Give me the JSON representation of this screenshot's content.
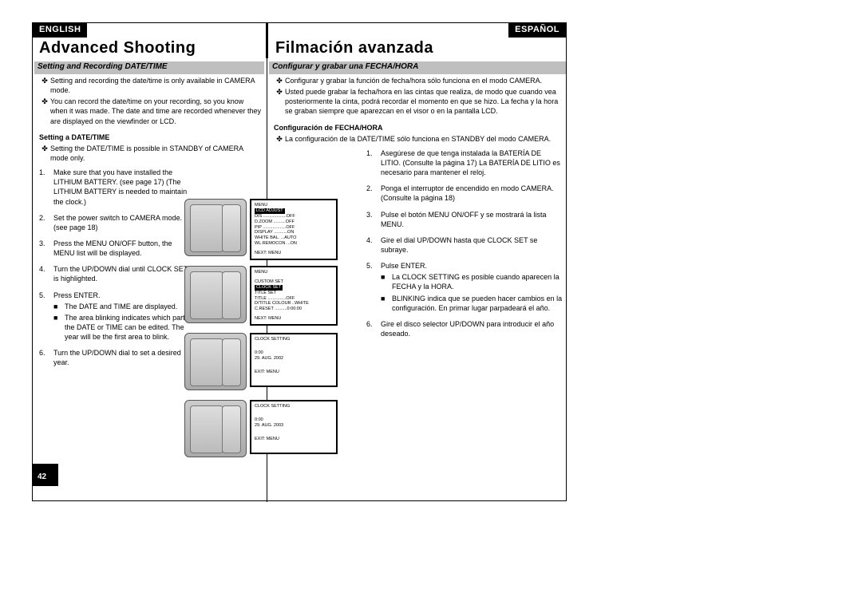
{
  "lang": {
    "en": "ENGLISH",
    "es": "ESPAÑOL"
  },
  "heading": {
    "en": "Advanced Shooting",
    "es": "Filmación avanzada"
  },
  "subbar": {
    "en": "Setting and Recording DATE/TIME",
    "es": "Configurar y grabar una FECHA/HORA"
  },
  "intro_en": [
    "Setting and recording the date/time is only available in CAMERA mode.",
    "You can record the date/time on your recording, so you know when it was made. The date and time are recorded whenever they are displayed on the viewfinder or LCD."
  ],
  "intro_es": [
    "Configurar y grabar la función de fecha/hora sólo funciona en el modo CAMERA.",
    "Usted puede grabar la fecha/hora en las cintas que realiza, de modo que cuando vea posteriormente la cinta, podrá recordar el momento en que se hizo. La fecha y la hora se graban siempre que aparezcan en el visor o en la pantalla LCD."
  ],
  "subhead": {
    "en": "Setting a DATE/TIME",
    "es": "Configuración de FECHA/HORA"
  },
  "subnote": {
    "en": "Setting the DATE/TIME is possible in STANDBY of CAMERA mode only.",
    "es": "La configuración de la DATE/TIME sólo funciona en STANDBY del modo CAMERA."
  },
  "steps_en": [
    {
      "n": "1.",
      "t": "Make sure that you have installed the LITHIUM BATTERY. (see page 17) (The LITHIUM BATTERY is needed to maintain the clock.)"
    },
    {
      "n": "2.",
      "t": "Set the power switch to CAMERA mode. (see page 18)"
    },
    {
      "n": "3.",
      "t": "Press the MENU ON/OFF button, the MENU list will be displayed."
    },
    {
      "n": "4.",
      "t": "Turn the UP/DOWN dial until CLOCK SET is highlighted."
    },
    {
      "n": "5.",
      "t": "Press ENTER.",
      "subs": [
        "The DATE and TIME are displayed.",
        "The area blinking indicates which part of the DATE or TIME can be edited. The year will be the first area to blink."
      ]
    },
    {
      "n": "6.",
      "t": "Turn the UP/DOWN dial to set a desired year."
    }
  ],
  "steps_es": [
    {
      "n": "1.",
      "t": "Asegúrese de que tenga instalada la BATERÍA DE LITIO. (Consulte la página 17) La BATERÍA DE LITIO es necesario para mantener el reloj."
    },
    {
      "n": "2.",
      "t": "Ponga el interruptor de encendido en modo CAMERA. (Consulte la página 18)"
    },
    {
      "n": "3.",
      "t": "Pulse el botón MENU ON/OFF y se mostrará la lista MENU."
    },
    {
      "n": "4.",
      "t": "Gire el dial UP/DOWN hasta que CLOCK SET se subraye."
    },
    {
      "n": "5.",
      "t": "Pulse ENTER.",
      "subs": [
        "La CLOCK SETTING es posible cuando aparecen la  FECHA y la HORA.",
        "BLINKING indica que se pueden hacer cambios en la configuración. En primar lugar parpadeará el año."
      ]
    },
    {
      "n": "6.",
      "t": "Gire el disco selector UP/DOWN para introducir el año deseado."
    }
  ],
  "pagenum": "42",
  "screens": [
    {
      "lines": [
        {
          "t": "MENU"
        },
        {
          "t": "LCD ADJUST",
          "hl": true
        },
        {
          "t": "DIS ...................OFF"
        },
        {
          "t": "D.ZOOM ..........OFF"
        },
        {
          "t": "PIP ...................OFF"
        },
        {
          "t": "DISPLAY ...........ON"
        },
        {
          "t": "WHITE BAL. ...AUTO"
        },
        {
          "t": "WL.REMOCON ...ON"
        },
        {
          "sp": true
        },
        {
          "t": "NEXT: MENU"
        }
      ]
    },
    {
      "lines": [
        {
          "t": "MENU"
        },
        {
          "sp": true
        },
        {
          "t": "CUSTOM SET"
        },
        {
          "t": "CLOCK SET",
          "hl": true
        },
        {
          "t": "TITLE SET"
        },
        {
          "t": "TITLE ...............OFF"
        },
        {
          "t": "D/TITLE COLOUR ..WHITE"
        },
        {
          "t": "C.RESET ..........0:00:00"
        },
        {
          "sp": true
        },
        {
          "t": "NEXT: MENU"
        }
      ]
    },
    {
      "lines": [
        {
          "t": "CLOCK SETTING"
        },
        {
          "sp": true
        },
        {
          "sp": true
        },
        {
          "t": "                    0:00"
        },
        {
          "t": "          29. AUG. 2002"
        },
        {
          "sp": true
        },
        {
          "sp": true
        },
        {
          "t": "EXIT: MENU"
        }
      ]
    },
    {
      "lines": [
        {
          "t": "CLOCK SETTING"
        },
        {
          "sp": true
        },
        {
          "sp": true
        },
        {
          "t": "                    0:00"
        },
        {
          "t": "          29. AUG. 2003"
        },
        {
          "sp": true
        },
        {
          "sp": true
        },
        {
          "t": "EXIT: MENU"
        }
      ]
    }
  ]
}
